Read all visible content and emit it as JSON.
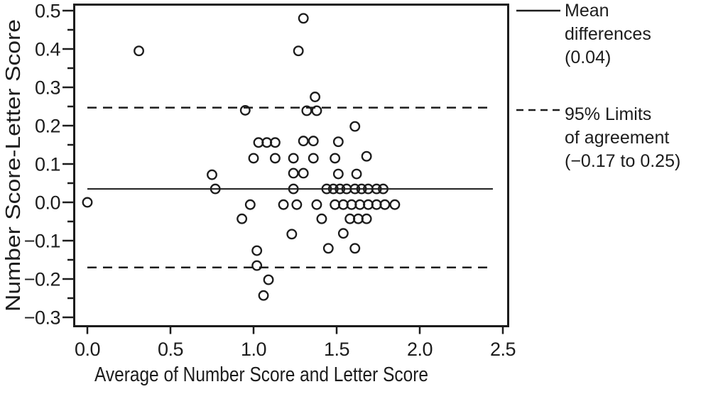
{
  "colors": {
    "ink": "#1c1c1c",
    "background": "#ffffff"
  },
  "legend": {
    "mean": {
      "lines": [
        "Mean",
        "differences",
        "(0.04)"
      ]
    },
    "loa": {
      "lines": [
        "95% Limits",
        "of agreement",
        "(−0.17 to 0.25)"
      ]
    }
  },
  "chart_data": {
    "type": "scatter",
    "title": "",
    "xlabel": "Average of Number Score and Letter Score",
    "ylabel": "Number Score-Letter Score",
    "xlim": [
      -0.08,
      2.53
    ],
    "ylim": [
      -0.32,
      0.52
    ],
    "grid": false,
    "legend_position": "right",
    "xticks": {
      "values": [
        0.0,
        0.5,
        1.0,
        1.5,
        2.0,
        2.5
      ],
      "labels": [
        "0.0",
        "0.5",
        "1.0",
        "1.5",
        "2.0",
        "2.5"
      ]
    },
    "yticks": {
      "values": [
        0.5,
        0.4,
        0.3,
        0.2,
        0.1,
        0.0,
        -0.1,
        -0.2,
        -0.3
      ],
      "labels": [
        "0.5",
        "0.4",
        "0.3",
        "0.2",
        "0.1",
        "0.0",
        "−0.1",
        "−0.2",
        "−0.3"
      ]
    },
    "y_minor_ticks": [
      0.45,
      0.35,
      0.25,
      0.15,
      0.05,
      -0.05,
      -0.15,
      -0.25
    ],
    "mean_difference": 0.04,
    "limits_of_agreement": [
      -0.17,
      0.25
    ],
    "lines": {
      "mean_y": 0.035,
      "upper_y": 0.247,
      "lower_y": -0.17,
      "x_start": 0.0,
      "x_end": 2.44
    },
    "points": [
      [
        0.0,
        0.0
      ],
      [
        0.31,
        0.395
      ],
      [
        1.27,
        0.395
      ],
      [
        1.3,
        0.48
      ],
      [
        1.37,
        0.275
      ],
      [
        0.95,
        0.24
      ],
      [
        1.32,
        0.239
      ],
      [
        1.38,
        0.239
      ],
      [
        1.61,
        0.198
      ],
      [
        1.03,
        0.156
      ],
      [
        1.08,
        0.156
      ],
      [
        1.13,
        0.156
      ],
      [
        1.3,
        0.16
      ],
      [
        1.36,
        0.16
      ],
      [
        1.51,
        0.158
      ],
      [
        1.0,
        0.115
      ],
      [
        1.13,
        0.115
      ],
      [
        1.24,
        0.115
      ],
      [
        1.36,
        0.115
      ],
      [
        1.49,
        0.115
      ],
      [
        1.68,
        0.12
      ],
      [
        0.75,
        0.072
      ],
      [
        1.24,
        0.076
      ],
      [
        1.3,
        0.076
      ],
      [
        1.51,
        0.074
      ],
      [
        1.62,
        0.074
      ],
      [
        0.77,
        0.035
      ],
      [
        1.24,
        0.035
      ],
      [
        1.44,
        0.035
      ],
      [
        1.48,
        0.035
      ],
      [
        1.52,
        0.035
      ],
      [
        1.56,
        0.035
      ],
      [
        1.61,
        0.035
      ],
      [
        1.65,
        0.035
      ],
      [
        1.69,
        0.035
      ],
      [
        1.74,
        0.035
      ],
      [
        1.78,
        0.035
      ],
      [
        0.98,
        -0.006
      ],
      [
        1.18,
        -0.006
      ],
      [
        1.26,
        -0.006
      ],
      [
        1.38,
        -0.006
      ],
      [
        1.49,
        -0.006
      ],
      [
        1.54,
        -0.006
      ],
      [
        1.59,
        -0.006
      ],
      [
        1.64,
        -0.006
      ],
      [
        1.69,
        -0.006
      ],
      [
        1.74,
        -0.006
      ],
      [
        1.79,
        -0.006
      ],
      [
        1.85,
        -0.006
      ],
      [
        0.93,
        -0.043
      ],
      [
        1.41,
        -0.043
      ],
      [
        1.58,
        -0.043
      ],
      [
        1.63,
        -0.043
      ],
      [
        1.68,
        -0.043
      ],
      [
        1.23,
        -0.083
      ],
      [
        1.54,
        -0.081
      ],
      [
        1.02,
        -0.126
      ],
      [
        1.45,
        -0.12
      ],
      [
        1.61,
        -0.12
      ],
      [
        1.02,
        -0.165
      ],
      [
        1.09,
        -0.202
      ],
      [
        1.06,
        -0.243
      ]
    ]
  }
}
